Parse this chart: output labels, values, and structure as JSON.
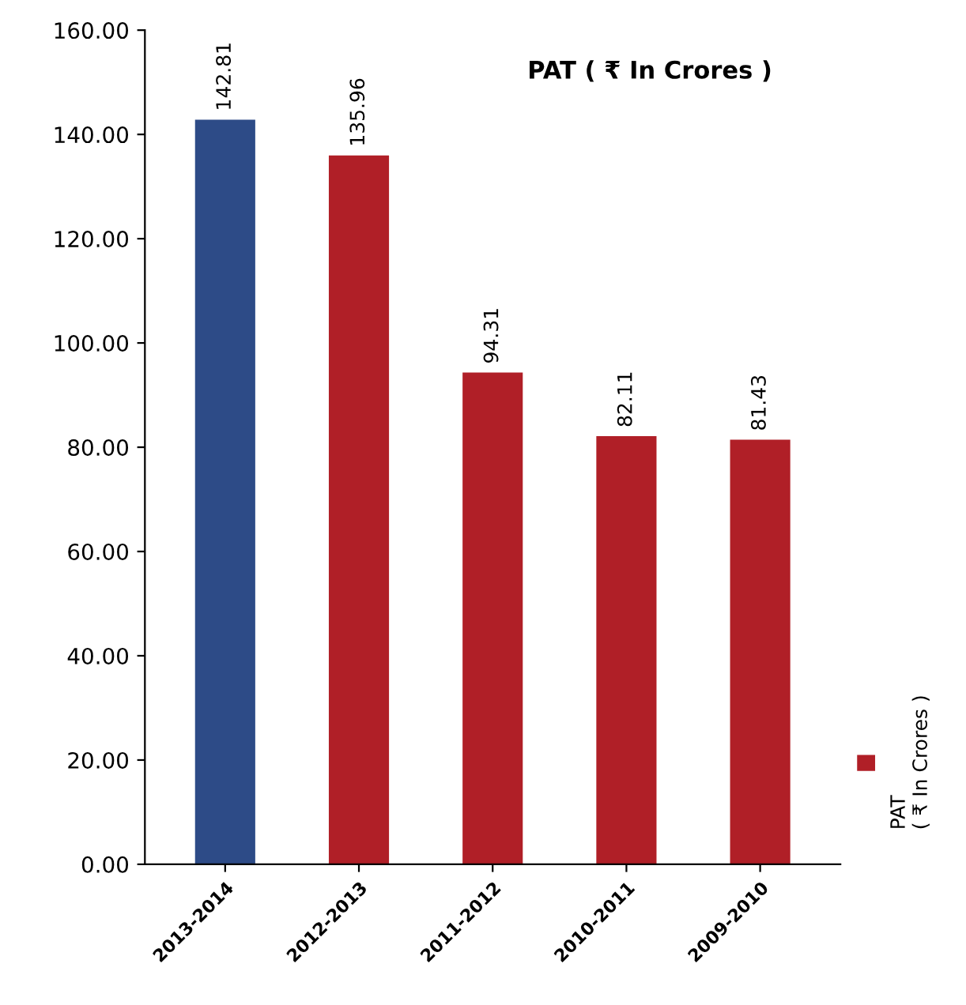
{
  "chart_data": {
    "type": "bar",
    "title": "PAT ( ₹ In Crores )",
    "categories": [
      "2013-2014",
      "2012-2013",
      "2011-2012",
      "2010-2011",
      "2009-2010"
    ],
    "series": [
      {
        "name": "PAT\n( ₹ In Crores )",
        "colors": [
          "#2d4b87",
          "#b01f27",
          "#b01f27",
          "#b01f27",
          "#b01f27"
        ],
        "values": [
          142.81,
          135.96,
          94.31,
          82.11,
          81.43
        ]
      }
    ],
    "ylim": [
      0,
      160
    ],
    "yticks": [
      {
        "value": 0,
        "label": "0.00"
      },
      {
        "value": 20,
        "label": "20.00"
      },
      {
        "value": 40,
        "label": "40.00"
      },
      {
        "value": 60,
        "label": "60.00"
      },
      {
        "value": 80,
        "label": "80.00"
      },
      {
        "value": 100,
        "label": "100.00"
      },
      {
        "value": 120,
        "label": "120.00"
      },
      {
        "value": 140,
        "label": "140.00"
      },
      {
        "value": 160,
        "label": "160.00"
      }
    ],
    "data_labels": true,
    "grid": false,
    "legend": "right"
  }
}
